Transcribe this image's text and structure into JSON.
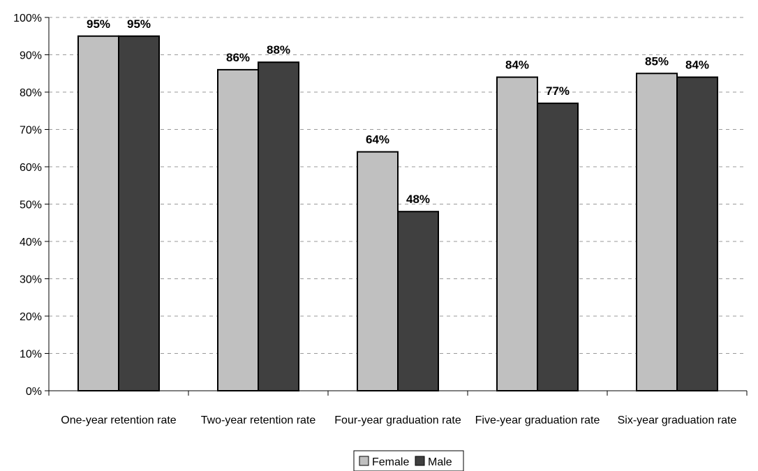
{
  "chart_data": {
    "type": "bar",
    "categories": [
      "One-year retention rate",
      "Two-year retention rate",
      "Four-year graduation rate",
      "Five-year graduation rate",
      "Six-year graduation rate"
    ],
    "series": [
      {
        "name": "Female",
        "values": [
          95,
          86,
          64,
          84,
          85
        ],
        "color": "#c0c0c0"
      },
      {
        "name": "Male",
        "values": [
          95,
          88,
          48,
          77,
          84
        ],
        "color": "#404040"
      }
    ],
    "data_labels": [
      [
        "95%",
        "86%",
        "64%",
        "84%",
        "85%"
      ],
      [
        "95%",
        "88%",
        "48%",
        "77%",
        "84%"
      ]
    ],
    "y_ticks": [
      "0%",
      "10%",
      "20%",
      "30%",
      "40%",
      "50%",
      "60%",
      "70%",
      "80%",
      "90%",
      "100%"
    ],
    "ylim": [
      0,
      100
    ],
    "y_step": 10,
    "grid": true,
    "legend_position": "bottom-center"
  }
}
